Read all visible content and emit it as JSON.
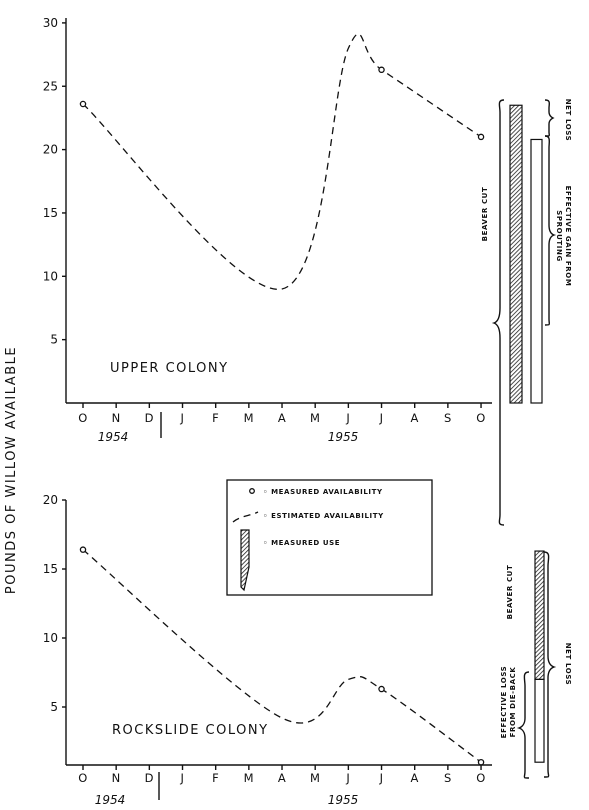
{
  "y_axis_label": "POUNDS OF WILLOW AVAILABLE",
  "legend": {
    "measured": "◦ MEASURED AVAILABILITY",
    "estimated": "◦ ESTIMATED AVAILABILITY",
    "use": "◦ MEASURED USE"
  },
  "months": [
    "O",
    "N",
    "D",
    "J",
    "F",
    "M",
    "A",
    "M",
    "J",
    "J",
    "A",
    "S",
    "O"
  ],
  "years": [
    "1954",
    "1955"
  ],
  "chart_data": [
    {
      "type": "line",
      "title": "UPPER COLONY",
      "ylim": [
        0,
        30
      ],
      "yticks": [
        "5",
        "10",
        "15",
        "20",
        "25",
        "30"
      ],
      "measured_points": [
        {
          "month": "Oct 1954",
          "value": 23.6
        },
        {
          "month": "Jul 1955",
          "value": 26.3
        },
        {
          "month": "Oct 1955",
          "value": 21.0
        }
      ],
      "estimated_curve": [
        {
          "month": "Oct 1954",
          "value": 23.6
        },
        {
          "month": "Apr 1955",
          "value": 9.0
        },
        {
          "month": "Jun 1955",
          "value": 28.0
        },
        {
          "month": "Jul 1955",
          "value": 26.3
        },
        {
          "month": "Oct 1955",
          "value": 21.0
        }
      ],
      "side_bars": {
        "beaver_cut": [
          0,
          23.5
        ],
        "effective_gain": [
          0,
          20.8
        ],
        "labels": {
          "net_loss": "NET LOSS",
          "beaver_cut": "BEAVER CUT",
          "effective_gain": "EFFECTIVE GAIN FROM SPROUTING"
        }
      }
    },
    {
      "type": "line",
      "title": "ROCKSLIDE COLONY",
      "ylim": [
        0,
        20
      ],
      "yticks": [
        "5",
        "10",
        "15",
        "20"
      ],
      "measured_points": [
        {
          "month": "Oct 1954",
          "value": 16.4
        },
        {
          "month": "Jul 1955",
          "value": 6.3
        },
        {
          "month": "Oct 1955",
          "value": 1.0
        }
      ],
      "estimated_curve": [
        {
          "month": "Oct 1954",
          "value": 16.4
        },
        {
          "month": "Apr 1955",
          "value": 4.2
        },
        {
          "month": "Jun 1955",
          "value": 7.0
        },
        {
          "month": "Jul 1955",
          "value": 6.3
        },
        {
          "month": "Oct 1955",
          "value": 1.0
        }
      ],
      "side_bars": {
        "beaver_cut": [
          7.0,
          16.3
        ],
        "effective_loss": [
          1.0,
          7.0
        ],
        "labels": {
          "effective_loss": "EFFECTIVE LOSS FROM DIE-BACK",
          "beaver_cut": "BEAVER CUT",
          "net_loss": "NET LOSS"
        }
      }
    }
  ]
}
